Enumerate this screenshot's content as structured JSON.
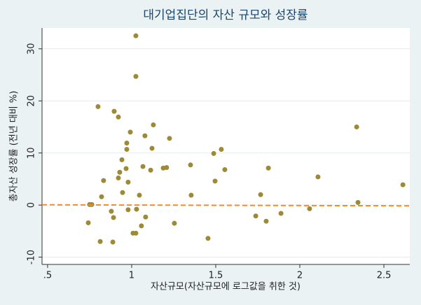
{
  "chart_data": {
    "type": "scatter",
    "title": "대기업집단의 자산 규모와 성장률",
    "x_label": "자산규모(자산규모에 로그값을 취한 것)",
    "y_label": "총자산 성장률 (전년 대비 %)",
    "xlim": [
      0.467,
      2.654
    ],
    "ylim": [
      -11.4,
      34
    ],
    "xticks": [
      {
        "value": 0.5,
        "label": ".5"
      },
      1,
      1.5,
      2,
      2.5
    ],
    "yticks": [
      -10,
      0,
      10,
      20,
      30
    ],
    "grid": true,
    "series": [
      {
        "type": "scatter",
        "color": "#9c8a35",
        "x": [
          1.025,
          1.025,
          0.8,
          0.896,
          0.921,
          1.129,
          2.338,
          0.992,
          1.079,
          1.225,
          0.971,
          0.971,
          1.121,
          1.533,
          1.488,
          0.942,
          1.35,
          1.067,
          0.967,
          1.208,
          1.188,
          1.813,
          1.554,
          1.113,
          0.929,
          0.833,
          0.979,
          1.496,
          0.921,
          2.108,
          2.613,
          0.946,
          0.821,
          1.046,
          1.354,
          1.767,
          2.346,
          0.75,
          0.763,
          0.979,
          1.029,
          0.879,
          2.058,
          1.888,
          0.892,
          1.083,
          1.738,
          0.742,
          1.8,
          1.254,
          1.058,
          1.025,
          1.008,
          1.454,
          0.813,
          0.888
        ],
        "values": [
          32.5,
          24.7,
          18.9,
          18.0,
          16.9,
          15.4,
          15.0,
          14.0,
          13.3,
          12.8,
          11.9,
          10.7,
          10.9,
          10.7,
          9.9,
          8.7,
          7.7,
          7.4,
          7.0,
          7.2,
          7.1,
          7.1,
          6.8,
          6.7,
          6.3,
          4.7,
          4.4,
          4.6,
          5.2,
          5.4,
          3.9,
          2.4,
          1.6,
          1.9,
          1.9,
          2.0,
          0.5,
          0.1,
          0.1,
          -0.9,
          -0.8,
          -1.2,
          -0.7,
          -1.6,
          -2.4,
          -2.3,
          -2.1,
          -3.4,
          -3.1,
          -3.5,
          -4.0,
          -5.4,
          -5.4,
          -6.4,
          -7.0,
          -7.1
        ]
      },
      {
        "type": "line",
        "color": "#f28a30",
        "dashed": true,
        "x": [
          0.467,
          2.654
        ],
        "values": [
          0.05,
          -0.15
        ]
      }
    ]
  }
}
